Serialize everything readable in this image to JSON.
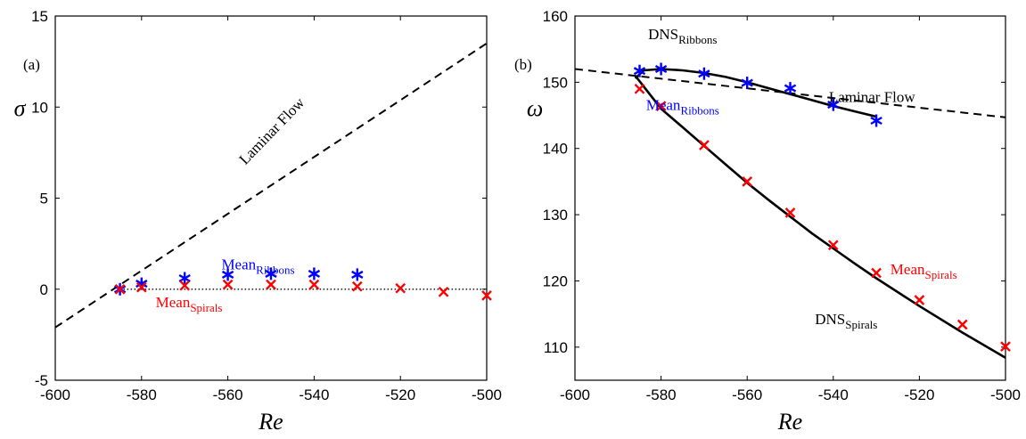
{
  "chart_data": [
    {
      "type": "scatter",
      "panel_label": "(a)",
      "xlabel": "Re",
      "ylabel": "σ",
      "xlim": [
        -600,
        -500
      ],
      "ylim": [
        -5,
        15
      ],
      "xticks": [
        "-600",
        "-580",
        "-560",
        "-540",
        "-520",
        "-500"
      ],
      "yticks": [
        "-5",
        "0",
        "5",
        "10",
        "15"
      ],
      "grid": false,
      "series": [
        {
          "name": "Laminar Flow",
          "style": "dashed-line",
          "color": "#000000",
          "x": [
            -600,
            -500
          ],
          "y": [
            -2.1,
            13.5
          ]
        },
        {
          "name": "zero",
          "style": "dotted-line",
          "color": "#000000",
          "x": [
            -585,
            -500
          ],
          "y": [
            0,
            0
          ]
        },
        {
          "name": "Mean Ribbons",
          "style": "asterisk",
          "color": "#0000ff",
          "x": [
            -585,
            -580,
            -570,
            -560,
            -550,
            -540,
            -530
          ],
          "y": [
            0.0,
            0.3,
            0.6,
            0.8,
            0.85,
            0.85,
            0.8
          ]
        },
        {
          "name": "Mean Spirals",
          "style": "cross",
          "color": "#ff0000",
          "x": [
            -585,
            -580,
            -570,
            -560,
            -550,
            -540,
            -530,
            -520,
            -510,
            -500
          ],
          "y": [
            0.0,
            0.1,
            0.2,
            0.25,
            0.25,
            0.25,
            0.15,
            0.05,
            -0.15,
            -0.35
          ]
        }
      ],
      "annotations": [
        {
          "base": "Laminar Flow",
          "sub": "",
          "color": "#000000",
          "x": -549,
          "y": 8.5,
          "rotate": -46
        },
        {
          "base": "Mean",
          "sub": "Ribbons",
          "color": "#0000ff",
          "x": -553,
          "y": 1.1
        },
        {
          "base": "Mean",
          "sub": "Spirals",
          "color": "#ff0000",
          "x": -569,
          "y": -1.0
        }
      ]
    },
    {
      "type": "line",
      "panel_label": "(b)",
      "xlabel": "Re",
      "ylabel": "ω",
      "xlim": [
        -600,
        -500
      ],
      "ylim": [
        105,
        160
      ],
      "xticks": [
        "-600",
        "-580",
        "-560",
        "-540",
        "-520",
        "-500"
      ],
      "yticks": [
        "110",
        "120",
        "130",
        "140",
        "150",
        "160"
      ],
      "grid": false,
      "series": [
        {
          "name": "Laminar Flow",
          "style": "dashed-line",
          "color": "#000000",
          "x": [
            -600,
            -500
          ],
          "y": [
            152,
            144.7
          ]
        },
        {
          "name": "DNS Ribbons",
          "style": "solid-line",
          "color": "#000000",
          "x": [
            -586,
            -584,
            -580,
            -575,
            -570,
            -565,
            -560,
            -555,
            -550,
            -545,
            -540,
            -535,
            -530
          ],
          "y": [
            150.6,
            151.8,
            152.0,
            151.8,
            151.4,
            150.8,
            150.0,
            149.1,
            148.2,
            147.3,
            146.4,
            145.6,
            144.8
          ]
        },
        {
          "name": "DNS Spirals",
          "style": "solid-line",
          "color": "#000000",
          "x": [
            -586,
            -580,
            -575,
            -570,
            -565,
            -560,
            -555,
            -550,
            -545,
            -540,
            -535,
            -530,
            -520,
            -510,
            -500
          ],
          "y": [
            151,
            146.0,
            143.2,
            140.4,
            137.6,
            134.8,
            132.2,
            129.7,
            127.2,
            124.9,
            122.6,
            120.4,
            116.2,
            112.2,
            108.4
          ]
        },
        {
          "name": "Mean Ribbons",
          "style": "asterisk",
          "color": "#0000ff",
          "x": [
            -585,
            -580,
            -570,
            -560,
            -550,
            -540,
            -530
          ],
          "y": [
            151.7,
            152.0,
            151.3,
            149.9,
            149.1,
            146.6,
            144.2
          ]
        },
        {
          "name": "Mean Spirals",
          "style": "cross",
          "color": "#ff0000",
          "x": [
            -585,
            -580,
            -570,
            -560,
            -550,
            -540,
            -530,
            -520,
            -510,
            -500
          ],
          "y": [
            149.0,
            146.4,
            140.5,
            135.0,
            130.3,
            125.4,
            121.2,
            117.1,
            113.4,
            110.1
          ]
        }
      ],
      "annotations": [
        {
          "base": "DNS",
          "sub": "Ribbons",
          "color": "#000000",
          "x": -575,
          "y": 156.5
        },
        {
          "base": "Laminar Flow",
          "sub": "",
          "color": "#000000",
          "x": -531,
          "y": 147.0
        },
        {
          "base": "Mean",
          "sub": "Ribbons",
          "color": "#0000ff",
          "x": -575,
          "y": 145.8
        },
        {
          "base": "Mean",
          "sub": "Spirals",
          "color": "#ff0000",
          "x": -519,
          "y": 121.0
        },
        {
          "base": "DNS",
          "sub": "Spirals",
          "color": "#000000",
          "x": -537,
          "y": 113.5
        }
      ]
    }
  ]
}
